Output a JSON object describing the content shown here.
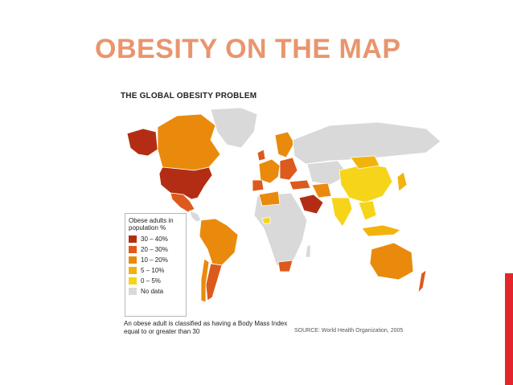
{
  "slide": {
    "title": "OBESITY ON THE MAP",
    "accent_color": "#e2262b",
    "title_color": "#e9956e"
  },
  "map": {
    "heading": "THE GLOBAL OBESITY PROBLEM",
    "legend": {
      "title": "Obese adults in population %",
      "items": [
        {
          "label": "30 – 40%",
          "color": "#b32d14"
        },
        {
          "label": "20 – 30%",
          "color": "#dc5a1c"
        },
        {
          "label": "10 – 20%",
          "color": "#ea8a0c"
        },
        {
          "label": "5 – 10%",
          "color": "#f2b30c"
        },
        {
          "label": "0 – 5%",
          "color": "#f6d41a"
        },
        {
          "label": "No data",
          "color": "#d9d9d9"
        }
      ]
    },
    "caption": "An obese adult is classified as having a Body Mass Index equal to or greater than 30",
    "source": "SOURCE: World Health Organization, 2005"
  }
}
